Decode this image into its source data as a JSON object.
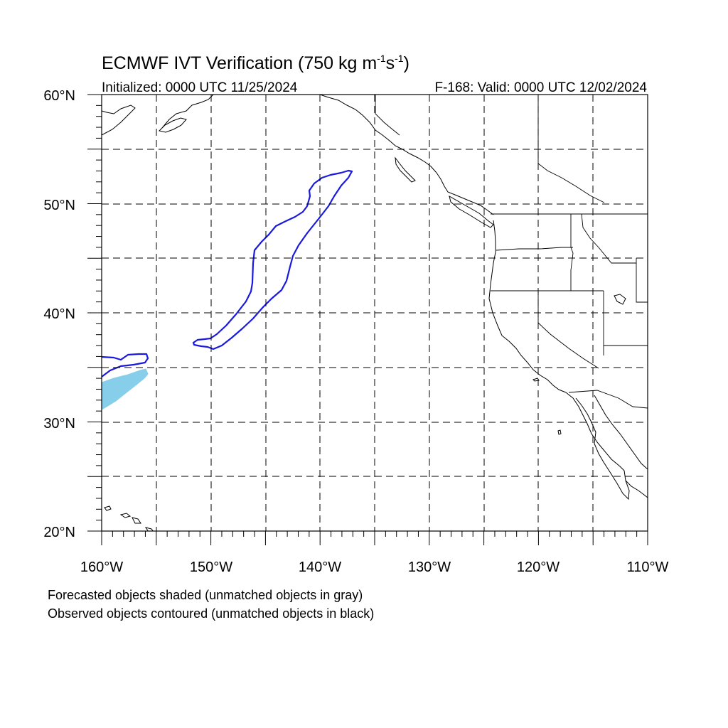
{
  "title_main": "ECMWF IVT Verification (750 kg m",
  "title_exp1": "-1",
  "title_mid": "s",
  "title_exp2": "-1",
  "title_end": ")",
  "init_text": "Initialized: 0000 UTC 11/25/2024",
  "valid_text": "F-168: Valid: 0000 UTC 12/02/2024",
  "lat_labels": [
    "60°N",
    "50°N",
    "40°N",
    "30°N",
    "20°N"
  ],
  "lon_labels": [
    "160°W",
    "150°W",
    "140°W",
    "130°W",
    "120°W",
    "110°W"
  ],
  "notes": {
    "line1": "Forecasted objects shaded (unmatched objects in gray)",
    "line2": "Observed objects contoured (unmatched objects in black)"
  },
  "map": {
    "lat_range": [
      20,
      60
    ],
    "lon_range": [
      -160,
      -110
    ],
    "grid_spacing_deg": 5,
    "projection": "cylindrical equidistant"
  },
  "colors": {
    "observed_contour": "#1a1adf",
    "forecast_shade": "#87ceeb",
    "coastline": "#000000"
  }
}
